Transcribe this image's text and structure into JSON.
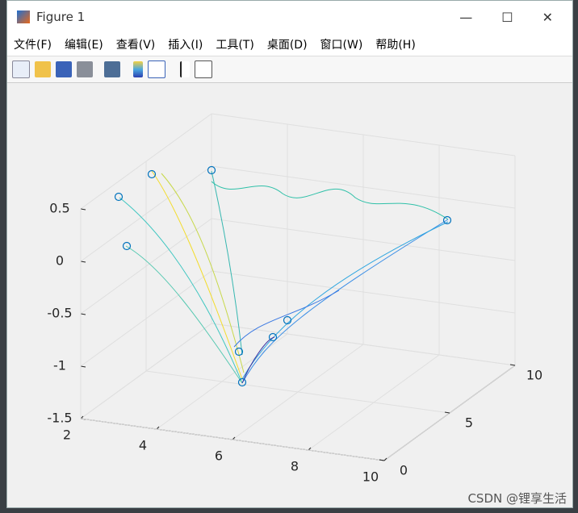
{
  "window": {
    "title": "Figure 1",
    "menu": [
      "文件(F)",
      "编辑(E)",
      "查看(V)",
      "插入(I)",
      "工具(T)",
      "桌面(D)",
      "窗口(W)",
      "帮助(H)"
    ]
  },
  "chart_data": {
    "type": "mesh3d",
    "xlim": [
      2,
      10
    ],
    "xticks": [
      2,
      4,
      6,
      8,
      10
    ],
    "ylim": [
      0,
      10
    ],
    "yticks": [
      0,
      5,
      10
    ],
    "zlim": [
      -1.5,
      0.5
    ],
    "zticks": [
      0.5,
      0,
      -0.5,
      -1,
      -1.5
    ],
    "grid": true
  },
  "watermark": "CSDN @锂享生活"
}
